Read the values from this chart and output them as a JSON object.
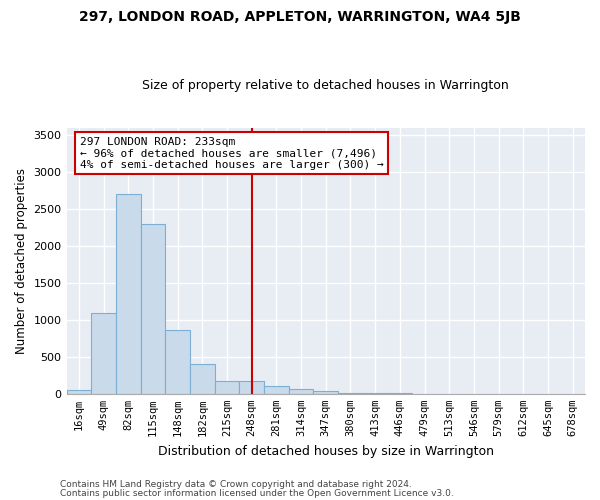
{
  "title": "297, LONDON ROAD, APPLETON, WARRINGTON, WA4 5JB",
  "subtitle": "Size of property relative to detached houses in Warrington",
  "xlabel": "Distribution of detached houses by size in Warrington",
  "ylabel": "Number of detached properties",
  "bar_labels": [
    "16sqm",
    "49sqm",
    "82sqm",
    "115sqm",
    "148sqm",
    "182sqm",
    "215sqm",
    "248sqm",
    "281sqm",
    "314sqm",
    "347sqm",
    "380sqm",
    "413sqm",
    "446sqm",
    "479sqm",
    "513sqm",
    "546sqm",
    "579sqm",
    "612sqm",
    "645sqm",
    "678sqm"
  ],
  "bar_values": [
    50,
    1100,
    2700,
    2300,
    870,
    400,
    175,
    175,
    105,
    65,
    35,
    15,
    10,
    5,
    3,
    2,
    1,
    1,
    0,
    0,
    0
  ],
  "bar_color": "#c9daea",
  "bar_edge_color": "#7bafd4",
  "vline_x": 7.0,
  "annotation_text": "297 LONDON ROAD: 233sqm\n← 96% of detached houses are smaller (7,496)\n4% of semi-detached houses are larger (300) →",
  "vline_color": "#cc0000",
  "bg_color": "#e8edf4",
  "grid_color": "#ffffff",
  "ylim": [
    0,
    3600
  ],
  "yticks": [
    0,
    500,
    1000,
    1500,
    2000,
    2500,
    3000,
    3500
  ],
  "footnote1": "Contains HM Land Registry data © Crown copyright and database right 2024.",
  "footnote2": "Contains public sector information licensed under the Open Government Licence v3.0."
}
